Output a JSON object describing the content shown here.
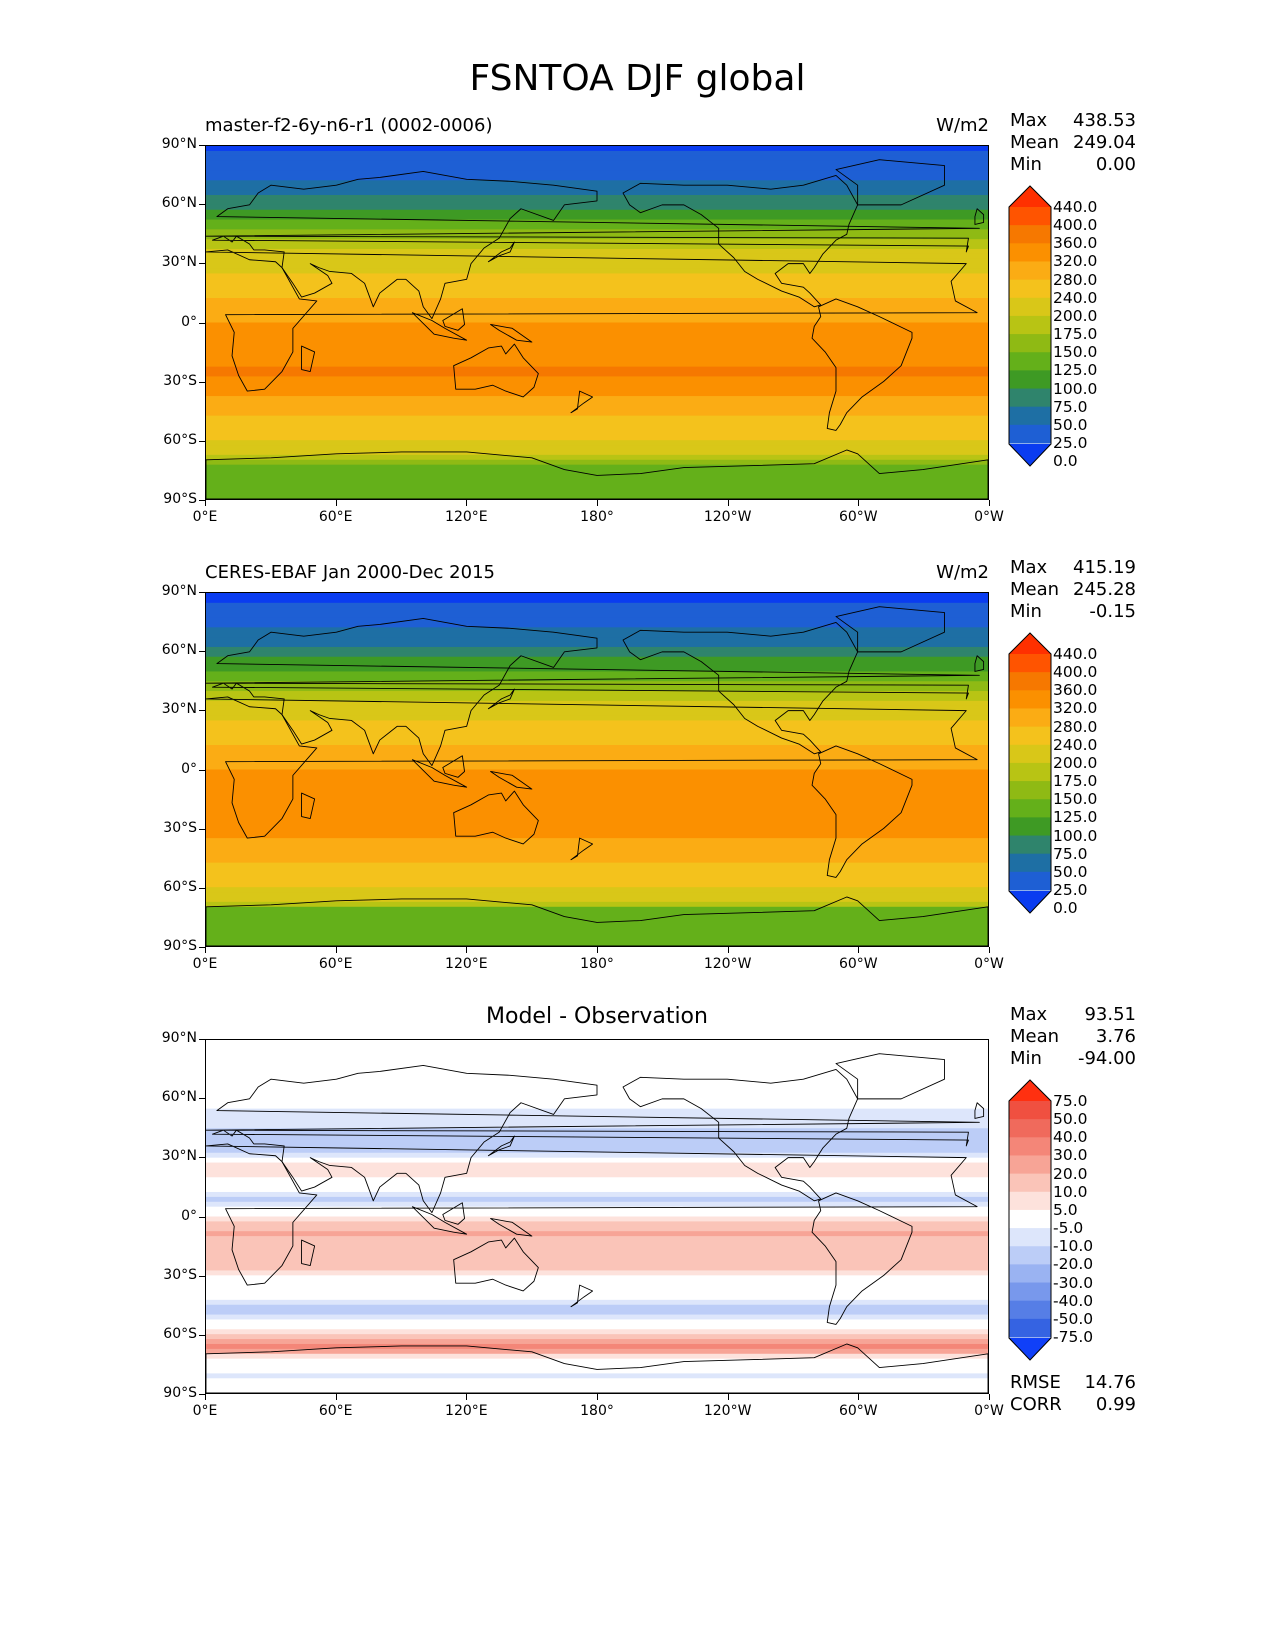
{
  "figure_title": "FSNTOA DJF global",
  "chart_data": [
    {
      "type": "heatmap",
      "subtype": "filled-contour world map",
      "title_left": "master-f2-6y-n6-r1 (0002-0006)",
      "units": "W/m2",
      "stats": {
        "max_label": "Max",
        "max": "438.53",
        "mean_label": "Mean",
        "mean": "249.04",
        "min_label": "Min",
        "min": "0.00"
      },
      "x_ticks": [
        "0°E",
        "60°E",
        "120°E",
        "180°",
        "120°W",
        "60°W",
        "0°W"
      ],
      "y_ticks": [
        "90°N",
        "60°N",
        "30°N",
        "0°",
        "30°S",
        "60°S",
        "90°S"
      ],
      "xlim": [
        0,
        360
      ],
      "ylim": [
        -90,
        90
      ],
      "colorbar_levels": [
        "440.0",
        "400.0",
        "360.0",
        "320.0",
        "280.0",
        "240.0",
        "200.0",
        "175.0",
        "150.0",
        "125.0",
        "100.0",
        "75.0",
        "50.0",
        "25.0",
        "0.0"
      ],
      "colorbar_colors": [
        "#ff3000",
        "#ff5400",
        "#f67800",
        "#fb9000",
        "#fbac14",
        "#f4c21c",
        "#d9c718",
        "#b8c414",
        "#8fba14",
        "#64b01a",
        "#3e9a24",
        "#2f846c",
        "#1e6fa4",
        "#1e5fd4",
        "#0a3cf0"
      ],
      "field_profile": [
        {
          "lat": 90,
          "value": 10
        },
        {
          "lat": 85,
          "value": 30
        },
        {
          "lat": 75,
          "value": 45
        },
        {
          "lat": 65,
          "value": 70
        },
        {
          "lat": 55,
          "value": 110
        },
        {
          "lat": 45,
          "value": 160
        },
        {
          "lat": 38,
          "value": 195
        },
        {
          "lat": 30,
          "value": 225
        },
        {
          "lat": 20,
          "value": 255
        },
        {
          "lat": 10,
          "value": 285
        },
        {
          "lat": 0,
          "value": 320
        },
        {
          "lat": -12,
          "value": 345
        },
        {
          "lat": -25,
          "value": 365
        },
        {
          "lat": -35,
          "value": 330
        },
        {
          "lat": -45,
          "value": 290
        },
        {
          "lat": -55,
          "value": 255
        },
        {
          "lat": -65,
          "value": 230
        },
        {
          "lat": -72,
          "value": 150
        },
        {
          "lat": -82,
          "value": 135
        },
        {
          "lat": -90,
          "value": 125
        }
      ]
    },
    {
      "type": "heatmap",
      "subtype": "filled-contour world map",
      "title_left": "CERES-EBAF Jan 2000-Dec 2015",
      "units": "W/m2",
      "stats": {
        "max_label": "Max",
        "max": "415.19",
        "mean_label": "Mean",
        "mean": "245.28",
        "min_label": "Min",
        "min": "-0.15"
      },
      "x_ticks": [
        "0°E",
        "60°E",
        "120°E",
        "180°",
        "120°W",
        "60°W",
        "0°W"
      ],
      "y_ticks": [
        "90°N",
        "60°N",
        "30°N",
        "0°",
        "30°S",
        "60°S",
        "90°S"
      ],
      "xlim": [
        0,
        360
      ],
      "ylim": [
        -90,
        90
      ],
      "colorbar_levels": [
        "440.0",
        "400.0",
        "360.0",
        "320.0",
        "280.0",
        "240.0",
        "200.0",
        "175.0",
        "150.0",
        "125.0",
        "100.0",
        "75.0",
        "50.0",
        "25.0",
        "0.0"
      ],
      "colorbar_colors": [
        "#ff3000",
        "#ff5400",
        "#f67800",
        "#fb9000",
        "#fbac14",
        "#f4c21c",
        "#d9c718",
        "#b8c414",
        "#8fba14",
        "#64b01a",
        "#3e9a24",
        "#2f846c",
        "#1e6fa4",
        "#1e5fd4",
        "#0a3cf0"
      ],
      "field_profile": [
        {
          "lat": 90,
          "value": 5
        },
        {
          "lat": 85,
          "value": 30
        },
        {
          "lat": 75,
          "value": 45
        },
        {
          "lat": 65,
          "value": 70
        },
        {
          "lat": 55,
          "value": 105
        },
        {
          "lat": 45,
          "value": 155
        },
        {
          "lat": 38,
          "value": 190
        },
        {
          "lat": 30,
          "value": 225
        },
        {
          "lat": 20,
          "value": 255
        },
        {
          "lat": 10,
          "value": 290
        },
        {
          "lat": 0,
          "value": 320
        },
        {
          "lat": -12,
          "value": 340
        },
        {
          "lat": -25,
          "value": 345
        },
        {
          "lat": -35,
          "value": 320
        },
        {
          "lat": -45,
          "value": 285
        },
        {
          "lat": -55,
          "value": 255
        },
        {
          "lat": -65,
          "value": 230
        },
        {
          "lat": -72,
          "value": 140
        },
        {
          "lat": -82,
          "value": 130
        },
        {
          "lat": -90,
          "value": 125
        }
      ]
    },
    {
      "type": "heatmap",
      "subtype": "filled-contour world map (difference)",
      "title_center": "Model - Observation",
      "stats": {
        "max_label": "Max",
        "max": "93.51",
        "mean_label": "Mean",
        "mean": "3.76",
        "min_label": "Min",
        "min": "-94.00"
      },
      "extra_stats": {
        "rmse_label": "RMSE",
        "rmse": "14.76",
        "corr_label": "CORR",
        "corr": "0.99"
      },
      "x_ticks": [
        "0°E",
        "60°E",
        "120°E",
        "180°",
        "120°W",
        "60°W",
        "0°W"
      ],
      "y_ticks": [
        "90°N",
        "60°N",
        "30°N",
        "0°",
        "30°S",
        "60°S",
        "90°S"
      ],
      "xlim": [
        0,
        360
      ],
      "ylim": [
        -90,
        90
      ],
      "colorbar_levels": [
        "75.0",
        "50.0",
        "40.0",
        "30.0",
        "20.0",
        "10.0",
        "5.0",
        "-5.0",
        "-10.0",
        "-20.0",
        "-30.0",
        "-40.0",
        "-50.0",
        "-75.0"
      ],
      "colorbar_colors": [
        "#ff3010",
        "#f05040",
        "#f06a5c",
        "#f48678",
        "#f7a496",
        "#fac4b8",
        "#fde2dc",
        "#ffffff",
        "#dde6fb",
        "#bccdf7",
        "#9ab3f2",
        "#7898ec",
        "#567ee6",
        "#3563e2",
        "#1040f8"
      ],
      "field_profile": [
        {
          "lat": 90,
          "value": 0
        },
        {
          "lat": 70,
          "value": 2
        },
        {
          "lat": 50,
          "value": -8
        },
        {
          "lat": 35,
          "value": -15
        },
        {
          "lat": 25,
          "value": 8
        },
        {
          "lat": 15,
          "value": 2
        },
        {
          "lat": 8,
          "value": -12
        },
        {
          "lat": 0,
          "value": 4
        },
        {
          "lat": -8,
          "value": 22
        },
        {
          "lat": -15,
          "value": 14
        },
        {
          "lat": -22,
          "value": 18
        },
        {
          "lat": -30,
          "value": 4
        },
        {
          "lat": -40,
          "value": 2
        },
        {
          "lat": -48,
          "value": -15
        },
        {
          "lat": -56,
          "value": 3
        },
        {
          "lat": -62,
          "value": 12
        },
        {
          "lat": -66,
          "value": 35
        },
        {
          "lat": -72,
          "value": 3
        },
        {
          "lat": -80,
          "value": -6
        },
        {
          "lat": -90,
          "value": 0
        }
      ]
    }
  ]
}
